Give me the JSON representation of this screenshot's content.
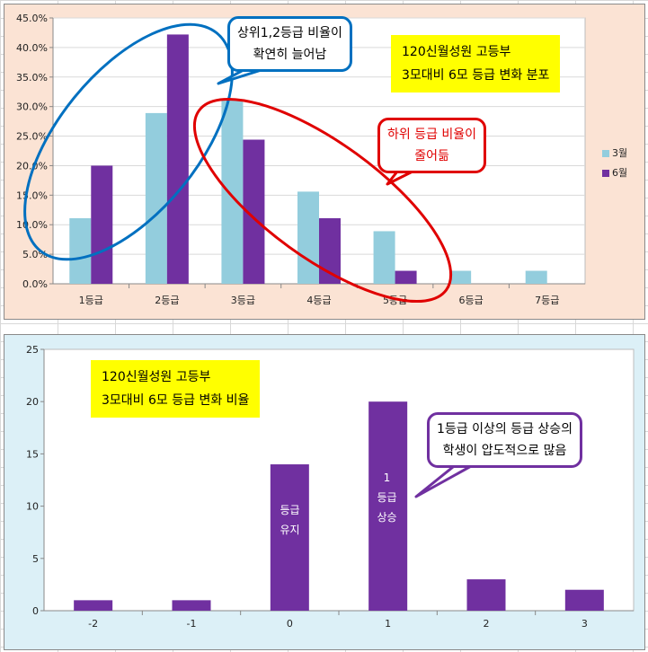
{
  "chart_data": [
    {
      "type": "bar",
      "categories": [
        "1등급",
        "2등급",
        "3등급",
        "4등급",
        "5등급",
        "6등급",
        "7등급"
      ],
      "series": [
        {
          "name": "3월",
          "color": "#93cddd",
          "values": [
            11.1,
            28.9,
            31.1,
            15.6,
            8.9,
            2.2,
            2.2
          ]
        },
        {
          "name": "6월",
          "color": "#7030a0",
          "values": [
            20.0,
            42.2,
            24.4,
            11.1,
            2.2,
            0,
            0
          ]
        }
      ],
      "yticks": [
        "0.0%",
        "5.0%",
        "10.0%",
        "15.0%",
        "20.0%",
        "25.0%",
        "30.0%",
        "35.0%",
        "40.0%",
        "45.0%"
      ],
      "ylim": [
        0,
        45
      ],
      "legend": "right",
      "title_box": {
        "line1": "120신월성원 고등부",
        "line2": "3모대비 6모 등급 변화 분포"
      },
      "callouts": [
        {
          "text1": "상위1,2등급 비율이",
          "text2": "확연히 늘어남",
          "color": "#0070c0"
        },
        {
          "text1": "하위 등급 비율이",
          "text2": "줄어듦",
          "color": "#e00000"
        }
      ]
    },
    {
      "type": "bar",
      "categories": [
        "-2",
        "-1",
        "0",
        "1",
        "2",
        "3"
      ],
      "series": [
        {
          "color": "#7030a0",
          "values": [
            1,
            1,
            14,
            20,
            3,
            2
          ]
        }
      ],
      "yticks": [
        "0",
        "5",
        "10",
        "15",
        "20",
        "25"
      ],
      "ylim": [
        0,
        25
      ],
      "title_box": {
        "line1": "120신월성원 고등부",
        "line2": "3모대비 6모 등급 변화 비율"
      },
      "bar_labels": {
        "keep1": "등급",
        "keep2": "유지",
        "up1": "1",
        "up2": "등급",
        "up3": "상승"
      },
      "callouts": [
        {
          "text1": "1등급 이상의 등급 상승의",
          "text2": "학생이 압도적으로 많음",
          "color": "#7030a0"
        }
      ]
    }
  ]
}
